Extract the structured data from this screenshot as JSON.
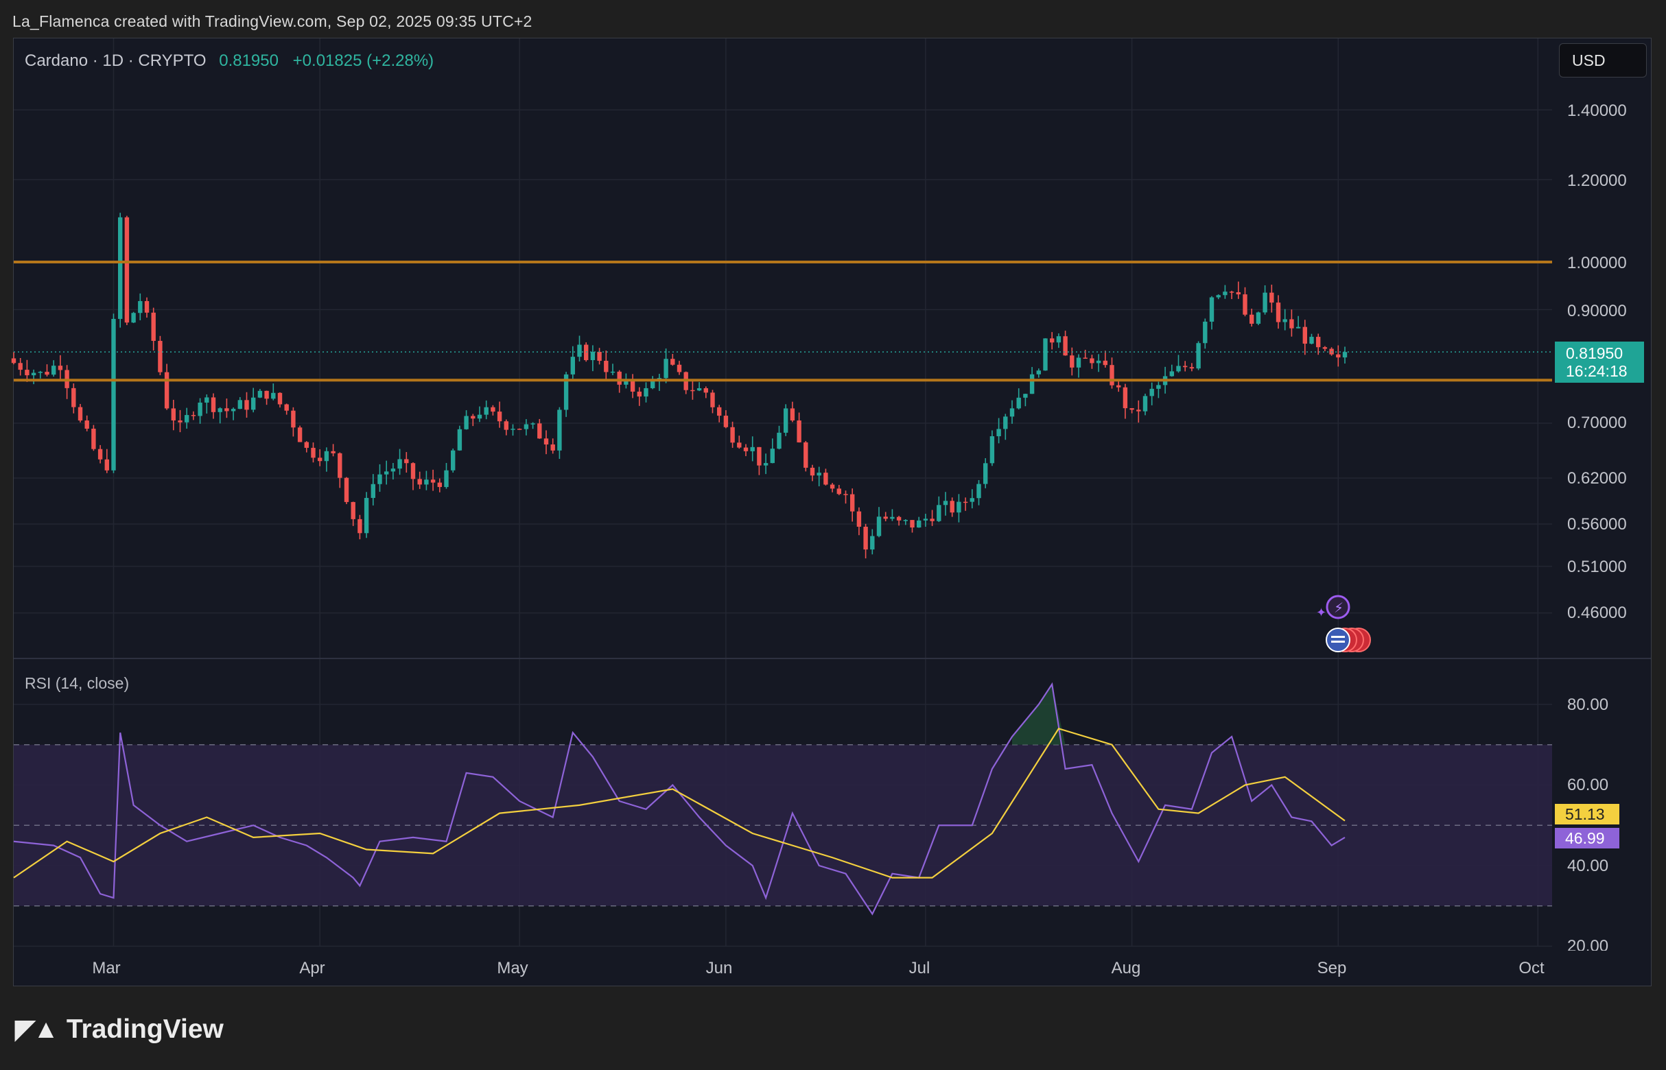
{
  "attribution": "La_Flamenca created with TradingView.com, Sep 02, 2025 09:35 UTC+2",
  "header": {
    "symbol": "Cardano · 1D · CRYPTO",
    "price": "0.81950",
    "change": "+0.01825 (+2.28%)"
  },
  "currency": "USD",
  "price_badge": {
    "price": "0.81950",
    "countdown": "16:24:18"
  },
  "rsi": {
    "title": "RSI (14, close)",
    "value_label": "46.99",
    "ma_label": "51.13"
  },
  "price_axis_labels": [
    "1.40000",
    "1.20000",
    "1.00000",
    "0.90000",
    "0.70000",
    "0.62000",
    "0.56000",
    "0.51000",
    "0.46000"
  ],
  "rsi_axis_labels": [
    "80.00",
    "60.00",
    "40.00",
    "20.00"
  ],
  "time_axis_labels": [
    "Mar",
    "Apr",
    "May",
    "Jun",
    "Jul",
    "Aug",
    "Sep",
    "Oct"
  ],
  "branding": "TradingView",
  "colors": {
    "up": "#26a69a",
    "down": "#ef5350",
    "level_lines": "#b5761a",
    "rsi_line": "#8e63d8",
    "rsi_ma": "#f4d03f",
    "badge": "#1fa496"
  },
  "chart_data": [
    {
      "type": "candlestick",
      "symbol": "Cardano",
      "interval": "1D",
      "x_range": [
        "2025-02-14",
        "2025-10-01"
      ],
      "y_scale": "log",
      "horizontal_levels": [
        1.0,
        0.77
      ],
      "last_price": 0.8195,
      "daily_closes": [
        {
          "date": "2025-02-14",
          "close": 0.8
        },
        {
          "date": "2025-02-18",
          "close": 0.78
        },
        {
          "date": "2025-02-21",
          "close": 0.8
        },
        {
          "date": "2025-02-24",
          "close": 0.7
        },
        {
          "date": "2025-02-27",
          "close": 0.64
        },
        {
          "date": "2025-02-28",
          "close": 0.64
        },
        {
          "date": "2025-03-02",
          "close": 1.1
        },
        {
          "date": "2025-03-03",
          "close": 0.87
        },
        {
          "date": "2025-03-05",
          "close": 0.92
        },
        {
          "date": "2025-03-07",
          "close": 0.84
        },
        {
          "date": "2025-03-09",
          "close": 0.73
        },
        {
          "date": "2025-03-11",
          "close": 0.69
        },
        {
          "date": "2025-03-14",
          "close": 0.74
        },
        {
          "date": "2025-03-18",
          "close": 0.72
        },
        {
          "date": "2025-03-21",
          "close": 0.73
        },
        {
          "date": "2025-03-24",
          "close": 0.75
        },
        {
          "date": "2025-03-27",
          "close": 0.72
        },
        {
          "date": "2025-03-30",
          "close": 0.66
        },
        {
          "date": "2025-04-03",
          "close": 0.65
        },
        {
          "date": "2025-04-06",
          "close": 0.57
        },
        {
          "date": "2025-04-07",
          "close": 0.55
        },
        {
          "date": "2025-04-09",
          "close": 0.62
        },
        {
          "date": "2025-04-13",
          "close": 0.64
        },
        {
          "date": "2025-04-16",
          "close": 0.61
        },
        {
          "date": "2025-04-20",
          "close": 0.62
        },
        {
          "date": "2025-04-22",
          "close": 0.69
        },
        {
          "date": "2025-04-25",
          "close": 0.72
        },
        {
          "date": "2025-04-29",
          "close": 0.7
        },
        {
          "date": "2025-05-03",
          "close": 0.69
        },
        {
          "date": "2025-05-06",
          "close": 0.67
        },
        {
          "date": "2025-05-08",
          "close": 0.78
        },
        {
          "date": "2025-05-10",
          "close": 0.82
        },
        {
          "date": "2025-05-13",
          "close": 0.81
        },
        {
          "date": "2025-05-16",
          "close": 0.76
        },
        {
          "date": "2025-05-20",
          "close": 0.75
        },
        {
          "date": "2025-05-23",
          "close": 0.8
        },
        {
          "date": "2025-05-26",
          "close": 0.76
        },
        {
          "date": "2025-05-29",
          "close": 0.75
        },
        {
          "date": "2025-06-01",
          "close": 0.69
        },
        {
          "date": "2025-06-05",
          "close": 0.66
        },
        {
          "date": "2025-06-07",
          "close": 0.63
        },
        {
          "date": "2025-06-10",
          "close": 0.72
        },
        {
          "date": "2025-06-13",
          "close": 0.64
        },
        {
          "date": "2025-06-16",
          "close": 0.62
        },
        {
          "date": "2025-06-19",
          "close": 0.6
        },
        {
          "date": "2025-06-22",
          "close": 0.53
        },
        {
          "date": "2025-06-24",
          "close": 0.57
        },
        {
          "date": "2025-06-27",
          "close": 0.56
        },
        {
          "date": "2025-06-30",
          "close": 0.56
        },
        {
          "date": "2025-07-03",
          "close": 0.58
        },
        {
          "date": "2025-07-06",
          "close": 0.58
        },
        {
          "date": "2025-07-09",
          "close": 0.61
        },
        {
          "date": "2025-07-11",
          "close": 0.69
        },
        {
          "date": "2025-07-14",
          "close": 0.73
        },
        {
          "date": "2025-07-17",
          "close": 0.77
        },
        {
          "date": "2025-07-19",
          "close": 0.83
        },
        {
          "date": "2025-07-21",
          "close": 0.86
        },
        {
          "date": "2025-07-23",
          "close": 0.79
        },
        {
          "date": "2025-07-26",
          "close": 0.81
        },
        {
          "date": "2025-07-29",
          "close": 0.77
        },
        {
          "date": "2025-08-01",
          "close": 0.71
        },
        {
          "date": "2025-08-04",
          "close": 0.75
        },
        {
          "date": "2025-08-07",
          "close": 0.78
        },
        {
          "date": "2025-08-10",
          "close": 0.8
        },
        {
          "date": "2025-08-13",
          "close": 0.93
        },
        {
          "date": "2025-08-15",
          "close": 0.95
        },
        {
          "date": "2025-08-17",
          "close": 0.92
        },
        {
          "date": "2025-08-19",
          "close": 0.86
        },
        {
          "date": "2025-08-21",
          "close": 0.93
        },
        {
          "date": "2025-08-23",
          "close": 0.88
        },
        {
          "date": "2025-08-26",
          "close": 0.86
        },
        {
          "date": "2025-08-29",
          "close": 0.82
        },
        {
          "date": "2025-09-01",
          "close": 0.8
        },
        {
          "date": "2025-09-02",
          "close": 0.8195
        }
      ]
    },
    {
      "type": "line",
      "title": "RSI (14, close)",
      "ylim": [
        20,
        90
      ],
      "band": [
        30,
        70
      ],
      "midline": 50,
      "series": [
        {
          "name": "RSI",
          "values_by_date": [
            {
              "date": "2025-02-14",
              "value": 46
            },
            {
              "date": "2025-02-20",
              "value": 45
            },
            {
              "date": "2025-02-24",
              "value": 42
            },
            {
              "date": "2025-02-27",
              "value": 33
            },
            {
              "date": "2025-03-01",
              "value": 32
            },
            {
              "date": "2025-03-02",
              "value": 73
            },
            {
              "date": "2025-03-04",
              "value": 55
            },
            {
              "date": "2025-03-08",
              "value": 50
            },
            {
              "date": "2025-03-12",
              "value": 46
            },
            {
              "date": "2025-03-17",
              "value": 48
            },
            {
              "date": "2025-03-22",
              "value": 50
            },
            {
              "date": "2025-03-26",
              "value": 47
            },
            {
              "date": "2025-03-30",
              "value": 45
            },
            {
              "date": "2025-04-02",
              "value": 42
            },
            {
              "date": "2025-04-06",
              "value": 37
            },
            {
              "date": "2025-04-07",
              "value": 35
            },
            {
              "date": "2025-04-10",
              "value": 46
            },
            {
              "date": "2025-04-15",
              "value": 47
            },
            {
              "date": "2025-04-20",
              "value": 46
            },
            {
              "date": "2025-04-23",
              "value": 63
            },
            {
              "date": "2025-04-27",
              "value": 62
            },
            {
              "date": "2025-05-01",
              "value": 56
            },
            {
              "date": "2025-05-06",
              "value": 52
            },
            {
              "date": "2025-05-09",
              "value": 73
            },
            {
              "date": "2025-05-12",
              "value": 67
            },
            {
              "date": "2025-05-16",
              "value": 56
            },
            {
              "date": "2025-05-20",
              "value": 54
            },
            {
              "date": "2025-05-24",
              "value": 60
            },
            {
              "date": "2025-05-28",
              "value": 52
            },
            {
              "date": "2025-06-01",
              "value": 45
            },
            {
              "date": "2025-06-05",
              "value": 40
            },
            {
              "date": "2025-06-07",
              "value": 32
            },
            {
              "date": "2025-06-11",
              "value": 53
            },
            {
              "date": "2025-06-15",
              "value": 40
            },
            {
              "date": "2025-06-19",
              "value": 38
            },
            {
              "date": "2025-06-23",
              "value": 28
            },
            {
              "date": "2025-06-26",
              "value": 38
            },
            {
              "date": "2025-06-30",
              "value": 37
            },
            {
              "date": "2025-07-03",
              "value": 50
            },
            {
              "date": "2025-07-08",
              "value": 50
            },
            {
              "date": "2025-07-11",
              "value": 64
            },
            {
              "date": "2025-07-14",
              "value": 72
            },
            {
              "date": "2025-07-18",
              "value": 80
            },
            {
              "date": "2025-07-20",
              "value": 85
            },
            {
              "date": "2025-07-22",
              "value": 64
            },
            {
              "date": "2025-07-26",
              "value": 65
            },
            {
              "date": "2025-07-29",
              "value": 53
            },
            {
              "date": "2025-08-02",
              "value": 41
            },
            {
              "date": "2025-08-06",
              "value": 55
            },
            {
              "date": "2025-08-10",
              "value": 54
            },
            {
              "date": "2025-08-13",
              "value": 68
            },
            {
              "date": "2025-08-16",
              "value": 72
            },
            {
              "date": "2025-08-19",
              "value": 56
            },
            {
              "date": "2025-08-22",
              "value": 60
            },
            {
              "date": "2025-08-25",
              "value": 52
            },
            {
              "date": "2025-08-28",
              "value": 51
            },
            {
              "date": "2025-08-31",
              "value": 45
            },
            {
              "date": "2025-09-02",
              "value": 46.99
            }
          ]
        },
        {
          "name": "RSI-based MA",
          "values_by_date": [
            {
              "date": "2025-02-14",
              "value": 37
            },
            {
              "date": "2025-02-22",
              "value": 46
            },
            {
              "date": "2025-03-01",
              "value": 41
            },
            {
              "date": "2025-03-08",
              "value": 48
            },
            {
              "date": "2025-03-15",
              "value": 52
            },
            {
              "date": "2025-03-22",
              "value": 47
            },
            {
              "date": "2025-04-01",
              "value": 48
            },
            {
              "date": "2025-04-08",
              "value": 44
            },
            {
              "date": "2025-04-18",
              "value": 43
            },
            {
              "date": "2025-04-28",
              "value": 53
            },
            {
              "date": "2025-05-10",
              "value": 55
            },
            {
              "date": "2025-05-24",
              "value": 59
            },
            {
              "date": "2025-06-05",
              "value": 48
            },
            {
              "date": "2025-06-17",
              "value": 42
            },
            {
              "date": "2025-06-26",
              "value": 37
            },
            {
              "date": "2025-07-02",
              "value": 37
            },
            {
              "date": "2025-07-11",
              "value": 48
            },
            {
              "date": "2025-07-21",
              "value": 74
            },
            {
              "date": "2025-07-29",
              "value": 70
            },
            {
              "date": "2025-08-05",
              "value": 54
            },
            {
              "date": "2025-08-11",
              "value": 53
            },
            {
              "date": "2025-08-18",
              "value": 60
            },
            {
              "date": "2025-08-24",
              "value": 62
            },
            {
              "date": "2025-09-02",
              "value": 51.13
            }
          ]
        }
      ]
    }
  ]
}
